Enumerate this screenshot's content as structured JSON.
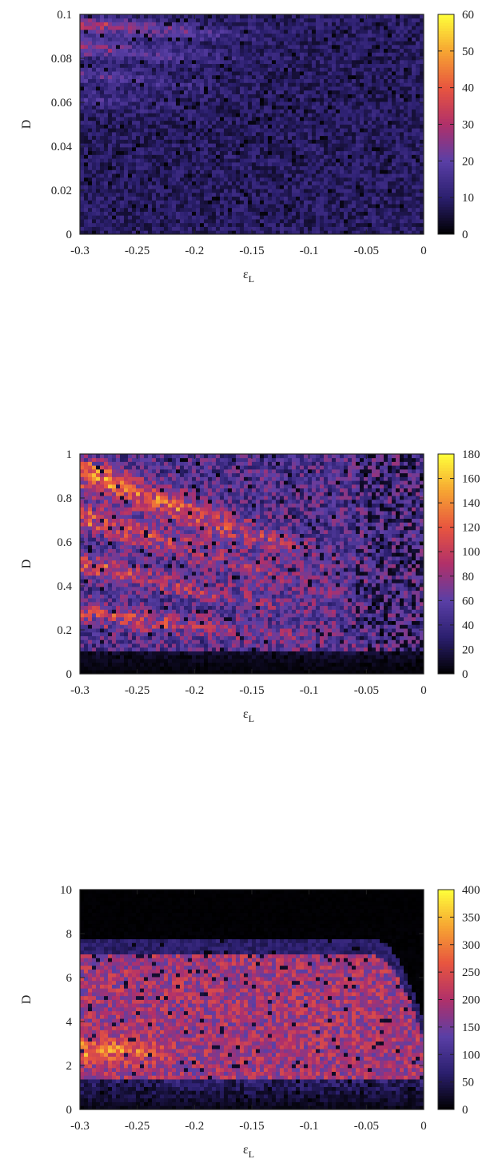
{
  "chart_data": [
    {
      "type": "heatmap",
      "title": "",
      "xlabel": {
        "main": "ε",
        "sub": "L"
      },
      "ylabel": "D",
      "xlim": [
        -0.3,
        0
      ],
      "ylim": [
        0,
        0.1
      ],
      "xticks": [
        "-0.3",
        "-0.25",
        "-0.2",
        "-0.15",
        "-0.1",
        "-0.05",
        "0"
      ],
      "yticks": [
        "0",
        "0.02",
        "0.04",
        "0.06",
        "0.08",
        "0.1"
      ],
      "colorbar": {
        "range": [
          0,
          60
        ],
        "ticks": [
          "0",
          "10",
          "20",
          "30",
          "40",
          "50",
          "60"
        ]
      },
      "colormap": [
        "#000000",
        "#2b1f6e",
        "#5a3fa6",
        "#b0306a",
        "#e8553f",
        "#f6a532",
        "#ffff3a"
      ],
      "grid": false,
      "seed": 11,
      "bands": [
        {
          "x": -0.3,
          "y": 0.095,
          "slope": 0.03,
          "width": 0.004,
          "amp": 22,
          "extent": 0.17
        },
        {
          "x": -0.3,
          "y": 0.085,
          "slope": 0.04,
          "width": 0.004,
          "amp": 16,
          "extent": 0.16
        },
        {
          "x": -0.3,
          "y": 0.073,
          "slope": 0.05,
          "width": 0.004,
          "amp": 11,
          "extent": 0.14
        },
        {
          "x": -0.3,
          "y": 0.063,
          "slope": 0.06,
          "width": 0.004,
          "amp": 7,
          "extent": 0.12
        }
      ],
      "base": {
        "level": 9,
        "noise": 5
      }
    },
    {
      "type": "heatmap",
      "title": "",
      "xlabel": {
        "main": "ε",
        "sub": "L"
      },
      "ylabel": "D",
      "xlim": [
        -0.3,
        0
      ],
      "ylim": [
        0,
        1
      ],
      "xticks": [
        "-0.3",
        "-0.25",
        "-0.2",
        "-0.15",
        "-0.1",
        "-0.05",
        "0"
      ],
      "yticks": [
        "0",
        "0.2",
        "0.4",
        "0.6",
        "0.8",
        "1"
      ],
      "colorbar": {
        "range": [
          0,
          180
        ],
        "ticks": [
          "0",
          "20",
          "40",
          "60",
          "80",
          "100",
          "120",
          "140",
          "160",
          "180"
        ]
      },
      "colormap": [
        "#000000",
        "#2b1f6e",
        "#5a3fa6",
        "#b0306a",
        "#e8553f",
        "#f6a532",
        "#ffff3a"
      ],
      "grid": false,
      "seed": 23,
      "bands": [
        {
          "x": -0.3,
          "y": 0.92,
          "slope": 1.9,
          "width": 0.07,
          "amp": 80,
          "extent": 0.27
        },
        {
          "x": -0.3,
          "y": 0.72,
          "slope": 1.6,
          "width": 0.06,
          "amp": 60,
          "extent": 0.25
        },
        {
          "x": -0.3,
          "y": 0.5,
          "slope": 1.1,
          "width": 0.05,
          "amp": 50,
          "extent": 0.26
        },
        {
          "x": -0.3,
          "y": 0.28,
          "slope": 0.6,
          "width": 0.05,
          "amp": 50,
          "extent": 0.28
        }
      ],
      "base": {
        "level": 52,
        "noise": 30,
        "low_cut": 0.1,
        "low_level": 12
      }
    },
    {
      "type": "heatmap",
      "title": "",
      "xlabel": {
        "main": "ε",
        "sub": "L"
      },
      "ylabel": "D",
      "xlim": [
        -0.3,
        0
      ],
      "ylim": [
        0,
        10
      ],
      "xticks": [
        "-0.3",
        "-0.25",
        "-0.2",
        "-0.15",
        "-0.1",
        "-0.05",
        "0"
      ],
      "yticks": [
        "0",
        "2",
        "4",
        "6",
        "8",
        "10"
      ],
      "colorbar": {
        "range": [
          0,
          400
        ],
        "ticks": [
          "0",
          "50",
          "100",
          "150",
          "200",
          "250",
          "300",
          "350",
          "400"
        ]
      },
      "colormap": [
        "#000000",
        "#2b1f6e",
        "#5a3fa6",
        "#b0306a",
        "#e8553f",
        "#f6a532",
        "#ffff3a"
      ],
      "grid": false,
      "seed": 37,
      "bands": [
        {
          "x": -0.3,
          "y": 2.7,
          "slope": 0,
          "width": 0.5,
          "amp": 150,
          "extent": 0.09
        }
      ],
      "base": {
        "level": 190,
        "noise": 60,
        "top": 7.0,
        "low_cut": 1.4,
        "low_level": 70
      }
    }
  ]
}
